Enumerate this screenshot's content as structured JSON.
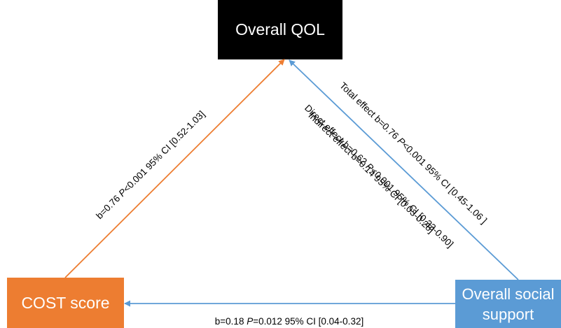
{
  "nodes": {
    "outcome": "Overall QOL",
    "mediator": "COST score",
    "predictor": {
      "line1": "Overall social",
      "line2": "support"
    }
  },
  "paths": {
    "mediator_to_outcome": {
      "pre": "b=0.76 ",
      "p": "P",
      "post": "<0.001 95% CI [0.52-1.03]"
    },
    "predictor_to_outcome_total": {
      "pre": "Total effect b=0.76 ",
      "p": "P",
      "post": "<0.001 95% CI [0.45-1.06 ]"
    },
    "predictor_to_outcome_direct": {
      "pre": "Direct effect b=0.62 ",
      "p": "P",
      "post": "<0.001 95% CI [0.33-0.90]"
    },
    "predictor_to_outcome_indirect": {
      "text": "Indirect effect  b=0.14 95% CI [0.03-0.28]"
    },
    "predictor_to_mediator": {
      "pre": "b=0.18 ",
      "p": "P",
      "post": "=0.012 95% CI [0.04-0.32]"
    }
  },
  "colors": {
    "outcome_box": "#000000",
    "mediator_box": "#ED7D31",
    "predictor_box": "#5B9BD5",
    "orange_arrow": "#ED7D31",
    "blue_arrow": "#5B9BD5"
  }
}
